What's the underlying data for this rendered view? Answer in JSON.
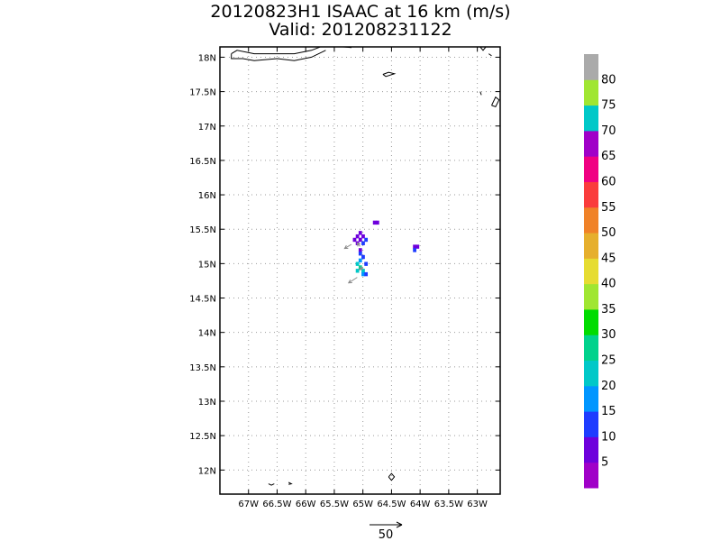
{
  "title_line1": "20120823H1 ISAAC at 16 km (m/s)",
  "title_line2": "Valid: 201208231122",
  "chart_data": {
    "type": "heatmap",
    "title": "20120823H1 ISAAC at 16 km (m/s)",
    "subtitle": "Valid: 201208231122",
    "xlim": [
      -67.5,
      -62.6
    ],
    "ylim": [
      11.65,
      18.15
    ],
    "grid": true,
    "xticks": [
      {
        "v": -67,
        "label": "67W"
      },
      {
        "v": -66.5,
        "label": "66.5W"
      },
      {
        "v": -66,
        "label": "66W"
      },
      {
        "v": -65.5,
        "label": "65.5W"
      },
      {
        "v": -65,
        "label": "65W"
      },
      {
        "v": -64.5,
        "label": "64.5W"
      },
      {
        "v": -64,
        "label": "64W"
      },
      {
        "v": -63.5,
        "label": "63.5W"
      },
      {
        "v": -63,
        "label": "63W"
      }
    ],
    "yticks": [
      {
        "v": 12,
        "label": "12N"
      },
      {
        "v": 12.5,
        "label": "12.5N"
      },
      {
        "v": 13,
        "label": "13N"
      },
      {
        "v": 13.5,
        "label": "13.5N"
      },
      {
        "v": 14,
        "label": "14N"
      },
      {
        "v": 14.5,
        "label": "14.5N"
      },
      {
        "v": 15,
        "label": "15N"
      },
      {
        "v": 15.5,
        "label": "15.5N"
      },
      {
        "v": 16,
        "label": "16N"
      },
      {
        "v": 16.5,
        "label": "16.5N"
      },
      {
        "v": 17,
        "label": "17N"
      },
      {
        "v": 17.5,
        "label": "17.5N"
      },
      {
        "v": 18,
        "label": "18N"
      }
    ],
    "colorbar": {
      "colors": [
        "#a000c8",
        "#6e00dc",
        "#1e3cff",
        "#0096ff",
        "#00c8c8",
        "#00d28c",
        "#00dc00",
        "#a0e632",
        "#e6dc32",
        "#e6af2d",
        "#f08228",
        "#fa3c3c",
        "#f00082",
        "#a000c8",
        "#00c8c8",
        "#a0e632",
        "#aaaaaa"
      ],
      "labels": [
        "5",
        "10",
        "15",
        "20",
        "25",
        "30",
        "35",
        "40",
        "45",
        "50",
        "55",
        "60",
        "65",
        "70",
        "75",
        "80"
      ]
    },
    "cells": [
      {
        "lon": -65.05,
        "lat": 15.45,
        "v": 5
      },
      {
        "lon": -65.1,
        "lat": 15.4,
        "v": 5
      },
      {
        "lon": -65.0,
        "lat": 15.4,
        "v": 8
      },
      {
        "lon": -65.15,
        "lat": 15.35,
        "v": 6
      },
      {
        "lon": -65.05,
        "lat": 15.35,
        "v": 7
      },
      {
        "lon": -64.95,
        "lat": 15.35,
        "v": 12
      },
      {
        "lon": -65.1,
        "lat": 15.3,
        "v": 5
      },
      {
        "lon": -65.0,
        "lat": 15.3,
        "v": 10
      },
      {
        "lon": -65.05,
        "lat": 15.2,
        "v": 8
      },
      {
        "lon": -65.05,
        "lat": 15.15,
        "v": 12
      },
      {
        "lon": -65.0,
        "lat": 15.1,
        "v": 10
      },
      {
        "lon": -65.05,
        "lat": 15.05,
        "v": 17
      },
      {
        "lon": -64.95,
        "lat": 15.0,
        "v": 14
      },
      {
        "lon": -65.1,
        "lat": 15.0,
        "v": 22
      },
      {
        "lon": -65.05,
        "lat": 14.95,
        "v": 25
      },
      {
        "lon": -65.1,
        "lat": 14.9,
        "v": 23
      },
      {
        "lon": -65.0,
        "lat": 14.9,
        "v": 20
      },
      {
        "lon": -65.0,
        "lat": 14.85,
        "v": 17
      },
      {
        "lon": -64.95,
        "lat": 14.85,
        "v": 14
      },
      {
        "lon": -64.8,
        "lat": 15.6,
        "v": 5
      },
      {
        "lon": -64.75,
        "lat": 15.6,
        "v": 8
      },
      {
        "lon": -64.1,
        "lat": 15.25,
        "v": 6
      },
      {
        "lon": -64.05,
        "lat": 15.25,
        "v": 8
      },
      {
        "lon": -64.1,
        "lat": 15.2,
        "v": 10
      }
    ],
    "vectors": [
      {
        "lon": -65.2,
        "lat": 15.28,
        "dlon": -0.12,
        "dlat": -0.06
      },
      {
        "lon": -65.05,
        "lat": 15.25,
        "dlon": -0.05,
        "dlat": 0.05
      },
      {
        "lon": -65.1,
        "lat": 14.8,
        "dlon": -0.15,
        "dlat": -0.08
      },
      {
        "lon": -65.0,
        "lat": 14.95,
        "dlon": -0.06,
        "dlat": -0.04
      }
    ]
  },
  "coastlines": [
    [
      [
        -67.3,
        18.05
      ],
      [
        -67.2,
        18.1
      ],
      [
        -66.9,
        18.05
      ],
      [
        -66.6,
        18.05
      ],
      [
        -66.2,
        18.05
      ],
      [
        -65.9,
        18.1
      ],
      [
        -65.65,
        18.18
      ]
    ],
    [
      [
        -67.3,
        18.05
      ],
      [
        -67.3,
        17.98
      ],
      [
        -67.1,
        17.98
      ],
      [
        -66.9,
        17.95
      ],
      [
        -66.5,
        17.98
      ],
      [
        -66.2,
        17.95
      ],
      [
        -65.9,
        18.0
      ],
      [
        -65.65,
        18.1
      ]
    ],
    [
      [
        -65.35,
        18.15
      ],
      [
        -65.2,
        18.14
      ]
    ],
    [
      [
        -64.65,
        17.75
      ],
      [
        -64.55,
        17.78
      ],
      [
        -64.45,
        17.76
      ],
      [
        -64.6,
        17.72
      ],
      [
        -64.65,
        17.75
      ]
    ],
    [
      [
        -62.95,
        18.15
      ],
      [
        -62.9,
        18.1
      ],
      [
        -62.85,
        18.15
      ]
    ],
    [
      [
        -62.8,
        18.05
      ],
      [
        -62.75,
        18.02
      ]
    ],
    [
      [
        -62.95,
        17.5
      ],
      [
        -62.93,
        17.45
      ]
    ],
    [
      [
        -62.75,
        17.3
      ],
      [
        -62.68,
        17.28
      ],
      [
        -62.62,
        17.38
      ],
      [
        -62.68,
        17.42
      ],
      [
        -62.75,
        17.3
      ]
    ],
    [
      [
        -64.55,
        11.9
      ],
      [
        -64.5,
        11.85
      ],
      [
        -64.45,
        11.9
      ],
      [
        -64.5,
        11.95
      ],
      [
        -64.55,
        11.9
      ]
    ],
    [
      [
        -66.65,
        11.8
      ],
      [
        -66.6,
        11.78
      ],
      [
        -66.55,
        11.8
      ]
    ],
    [
      [
        -66.3,
        11.82
      ],
      [
        -66.25,
        11.8
      ],
      [
        -66.3,
        11.79
      ]
    ]
  ],
  "scale_arrow": {
    "label": "50"
  }
}
